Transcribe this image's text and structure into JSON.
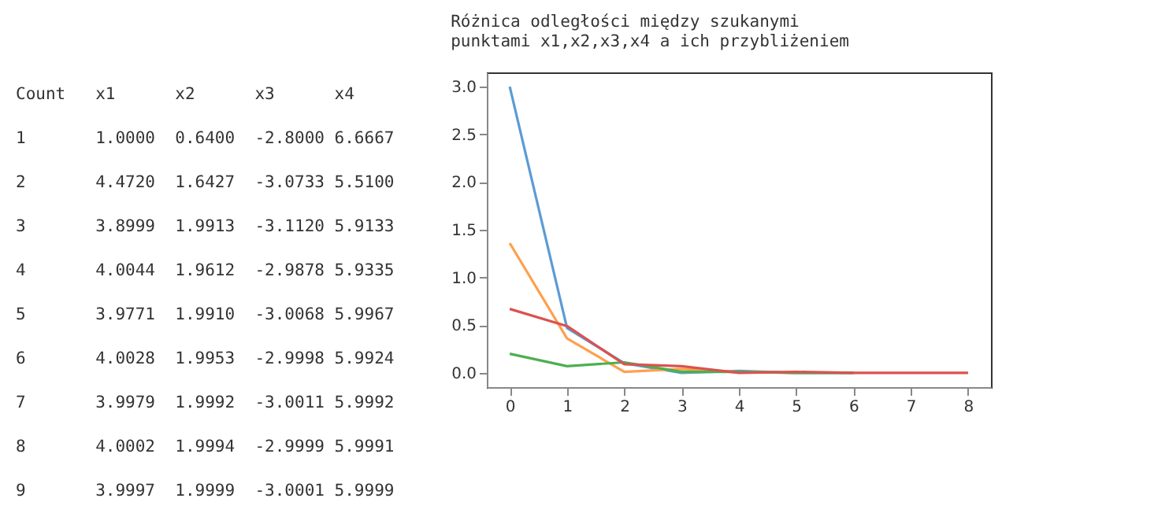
{
  "chart_data": [
    {
      "type": "other",
      "annotations": [
        "Count x1 x2 x3 x4",
        "1 1.0000 0.6400 -2.8000 6.6667",
        "2 4.4720 1.6427 -3.0733 5.5100",
        "3 3.8999 1.9913 -3.1120 5.9133",
        "4 4.0044 1.9612 -2.9878 5.9335",
        "5 3.9771 1.9910 -3.0068 5.9967",
        "6 4.0028 1.9953 -2.9998 5.9924",
        "7 3.9979 1.9992 -3.0011 5.9992",
        "8 4.0002 1.9994 -2.9999 5.9991",
        "9 3.9997 1.9999 -3.0001 5.9999"
      ]
    },
    {
      "type": "line",
      "title": "Różnica odległości między szukanymi\npunktami x1,x2,x3,x4 a ich przybliżeniem",
      "x": [
        0,
        1,
        2,
        3,
        4,
        5,
        6,
        7,
        8
      ],
      "xlim": [
        -0.4,
        8.4
      ],
      "xticks": [
        0,
        1,
        2,
        3,
        4,
        5,
        6,
        7,
        8
      ],
      "ylim": [
        -0.15,
        3.15
      ],
      "yticks": [
        {
          "value": 0,
          "label": "0.0"
        },
        0.5,
        {
          "value": 1,
          "label": "1.0"
        },
        1.5,
        {
          "value": 2,
          "label": "2.0"
        },
        2.5,
        {
          "value": 3,
          "label": "3.0"
        }
      ],
      "grid": false,
      "legend": false,
      "marker": "none",
      "series": [
        {
          "color": "#5b9bd5",
          "values": [
            3.0,
            0.47,
            0.1,
            0.0,
            0.02,
            0.0,
            0.0,
            null,
            null
          ]
        },
        {
          "color": "#ffa04d",
          "values": [
            1.36,
            0.36,
            0.01,
            0.04,
            0.01,
            0.0,
            null,
            null,
            null
          ]
        },
        {
          "color": "#4caf50",
          "values": [
            0.2,
            0.07,
            0.11,
            0.01,
            0.01,
            0.0,
            0.0,
            null,
            null
          ]
        },
        {
          "color": "#d9534f",
          "values": [
            0.67,
            0.49,
            0.09,
            0.07,
            0.0,
            0.01,
            0.0,
            0.0,
            0.0
          ]
        }
      ]
    }
  ]
}
